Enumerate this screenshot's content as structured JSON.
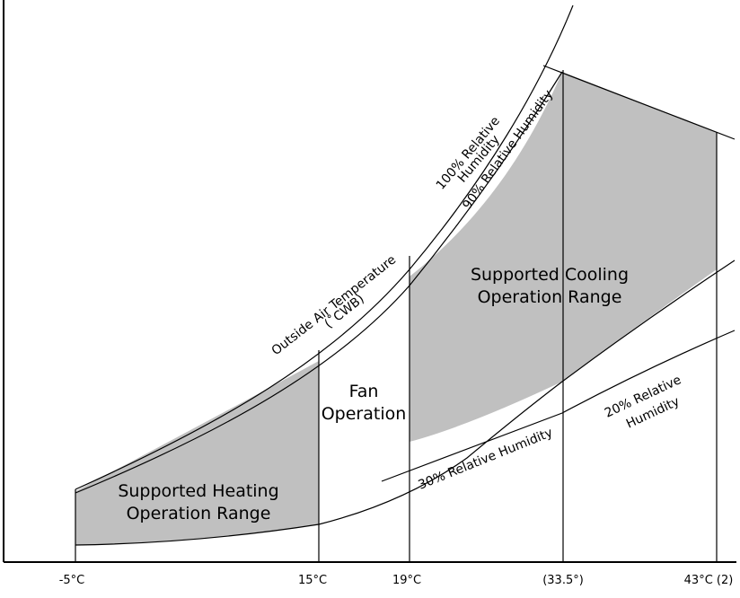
{
  "diagram": {
    "regions": {
      "heating": {
        "line1": "Supported Heating",
        "line2": "Operation Range",
        "fill": "#c0c0c0"
      },
      "fan": {
        "line1": "Fan",
        "line2": "Operation"
      },
      "cooling": {
        "line1": "Supported Cooling",
        "line2": "Operation Range",
        "fill": "#c0c0c0"
      }
    },
    "curve_labels": {
      "rh100_line1": "100% Relative",
      "rh100_line2": "Humidity",
      "rh90": "90% Relative Humidity",
      "outside_temp_line1": "Outside Air Temperature",
      "outside_temp_line2": "(˚CWB)",
      "rh30": "30% Relative Humidity",
      "rh20_line1": "20% Relative",
      "rh20_line2": "Humidity"
    },
    "x_ticks": [
      "-5°C",
      "15°C",
      "19°C",
      "(33.5°)",
      "43°C (2)"
    ]
  }
}
